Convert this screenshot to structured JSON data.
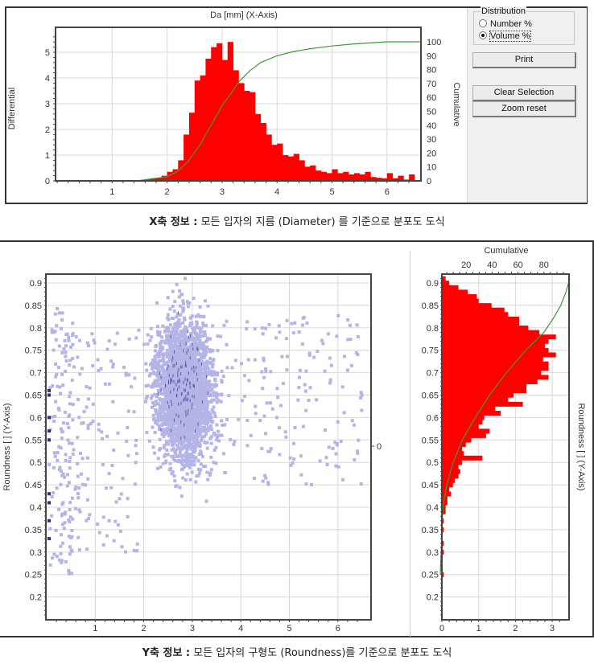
{
  "top_window": {
    "chart_title": "Da [mm] (X-Axis)",
    "left_axis_label": "Differential",
    "right_axis_label": "Cumulative",
    "distribution_group": {
      "title": "Distribution",
      "options": [
        {
          "label": "Number %",
          "selected": false
        },
        {
          "label": "Volume %",
          "selected": true
        }
      ]
    },
    "buttons": {
      "print": "Print",
      "clear_selection": "Clear Selection",
      "zoom_reset": "Zoom reset"
    }
  },
  "caption_top": {
    "bold": "X축 정보 :",
    "text": " 모든 입자의 지름 (Diameter) 를 기준으로 분포도 도식"
  },
  "bottom_window": {
    "scatter_y_label": "Roundness [ ] (Y-Axis)",
    "scatter_right_tick": "0",
    "hist_top_label": "Cumulative",
    "hist_right_label": "Roundness [ ] (Y-Axis)"
  },
  "caption_bottom": {
    "bold": "Y축 정보 :",
    "text": " 모든 입자의 구형도 (Roundness)를 기준으로 분포도 도식"
  },
  "colors": {
    "bar": "#ff0000",
    "cumulative_line": "#3c9a3c",
    "scatter_point": "#b4b4e6",
    "scatter_dense": "#5a5aaa",
    "grid": "#d8d8d8",
    "axis": "#444444"
  },
  "chart_data": [
    {
      "type": "bar",
      "title": "Da [mm] (X-Axis)",
      "xlabel": "Da [mm]",
      "ylabel": "Differential",
      "y2label": "Cumulative",
      "xlim": [
        0,
        6.7
      ],
      "ylim": [
        0,
        5.9
      ],
      "y2lim": [
        0,
        100
      ],
      "xticks": [
        1,
        2,
        3,
        4,
        5,
        6
      ],
      "yticks": [
        0,
        1,
        2,
        3,
        4,
        5
      ],
      "y2ticks": [
        0,
        10,
        20,
        30,
        40,
        50,
        60,
        70,
        80,
        90,
        100
      ],
      "grid": true,
      "bin_width": 0.1,
      "bins_start": [
        1.5,
        1.6,
        1.7,
        1.8,
        1.9,
        2.0,
        2.1,
        2.2,
        2.3,
        2.4,
        2.5,
        2.6,
        2.7,
        2.8,
        2.9,
        3.0,
        3.1,
        3.2,
        3.3,
        3.4,
        3.5,
        3.6,
        3.7,
        3.8,
        3.9,
        4.0,
        4.1,
        4.2,
        4.3,
        4.4,
        4.5,
        4.6,
        4.7,
        4.8,
        4.9,
        5.0,
        5.1,
        5.2,
        5.3,
        5.4,
        5.5,
        5.6,
        5.7,
        5.8,
        5.9,
        6.0,
        6.1,
        6.2,
        6.3,
        6.4
      ],
      "values": [
        0.02,
        0.06,
        0.1,
        0.12,
        0.2,
        0.35,
        0.45,
        0.8,
        1.8,
        2.65,
        3.9,
        4.1,
        4.75,
        5.2,
        5.35,
        4.7,
        5.4,
        4.3,
        3.8,
        3.5,
        3.45,
        2.6,
        2.25,
        1.8,
        1.4,
        1.45,
        1.0,
        0.95,
        1.05,
        0.8,
        0.55,
        0.6,
        0.4,
        0.35,
        0.3,
        0.45,
        0.3,
        0.35,
        0.25,
        0.3,
        0.25,
        0.35,
        0.15,
        0.12,
        0.1,
        0.3,
        0.1,
        0.2,
        0.05,
        0.25
      ],
      "cumulative": {
        "x": [
          0,
          1.5,
          2.0,
          2.2,
          2.4,
          2.6,
          2.8,
          3.0,
          3.2,
          3.3,
          3.5,
          3.7,
          4.0,
          4.3,
          4.6,
          5.0,
          5.4,
          6.0,
          6.6
        ],
        "y": [
          0,
          0.3,
          3,
          7,
          15,
          26,
          40,
          54,
          65,
          71,
          79,
          85,
          90,
          93,
          95,
          97,
          98.5,
          100,
          100
        ]
      }
    },
    {
      "type": "scatter",
      "xlabel": "Da [mm]",
      "ylabel": "Roundness [ ] (Y-Axis)",
      "xlim": [
        0,
        6.7
      ],
      "ylim": [
        0.15,
        0.92
      ],
      "xticks": [
        1,
        2,
        3,
        4,
        5,
        6
      ],
      "yticks": [
        0.2,
        0.25,
        0.3,
        0.35,
        0.4,
        0.45,
        0.5,
        0.55,
        0.6,
        0.65,
        0.7,
        0.75,
        0.8,
        0.85,
        0.9
      ],
      "grid": true,
      "description": "Dense cluster centered around Da≈2.8 mm, Roundness≈0.65 (spanning Da 1.8–4.2, Roundness 0.4–0.92); sparse tail to Da≈6.5; column of points near Da≈0.1–0.6"
    },
    {
      "type": "bar",
      "orientation": "horizontal",
      "xlabel": "Differential",
      "x2label": "Cumulative",
      "ylabel": "Roundness [ ] (Y-Axis)",
      "xlim": [
        0,
        3.4
      ],
      "ylim": [
        0.15,
        0.92
      ],
      "xticks": [
        0,
        1,
        2,
        3
      ],
      "x2ticks": [
        20,
        40,
        60,
        80
      ],
      "yticks": [
        0.2,
        0.25,
        0.3,
        0.35,
        0.4,
        0.45,
        0.5,
        0.55,
        0.6,
        0.65,
        0.7,
        0.75,
        0.8,
        0.85,
        0.9
      ],
      "grid": true,
      "bin_width": 0.01,
      "categories": [
        0.25,
        0.3,
        0.32,
        0.35,
        0.37,
        0.39,
        0.4,
        0.41,
        0.42,
        0.43,
        0.44,
        0.45,
        0.46,
        0.47,
        0.48,
        0.49,
        0.5,
        0.51,
        0.52,
        0.53,
        0.54,
        0.55,
        0.56,
        0.57,
        0.58,
        0.59,
        0.6,
        0.61,
        0.62,
        0.63,
        0.64,
        0.65,
        0.66,
        0.67,
        0.68,
        0.69,
        0.7,
        0.71,
        0.72,
        0.73,
        0.74,
        0.75,
        0.76,
        0.77,
        0.78,
        0.79,
        0.8,
        0.81,
        0.82,
        0.83,
        0.84,
        0.85,
        0.86,
        0.87,
        0.88,
        0.89,
        0.9,
        0.91
      ],
      "values": [
        0.05,
        0.05,
        0.05,
        0.05,
        0.05,
        0.1,
        0.1,
        0.15,
        0.15,
        0.25,
        0.2,
        0.3,
        0.35,
        0.45,
        0.5,
        0.45,
        0.55,
        1.1,
        0.6,
        0.55,
        0.65,
        0.8,
        1.2,
        1.3,
        1.0,
        1.1,
        1.15,
        1.6,
        1.45,
        2.2,
        1.8,
        1.95,
        2.3,
        2.3,
        2.6,
        2.9,
        2.7,
        2.9,
        2.9,
        2.75,
        3.1,
        2.9,
        2.8,
        2.9,
        3.1,
        2.65,
        2.35,
        2.1,
        2.1,
        1.8,
        1.7,
        1.35,
        1.0,
        0.95,
        0.7,
        0.45,
        0.2,
        0.1
      ],
      "cumulative": {
        "y": [
          0.25,
          0.4,
          0.45,
          0.5,
          0.55,
          0.6,
          0.65,
          0.7,
          0.75,
          0.79,
          0.82,
          0.85,
          0.88,
          0.91
        ],
        "x": [
          0,
          2,
          5,
          10,
          17,
          27,
          38,
          51,
          66,
          80,
          87,
          93,
          97,
          100
        ]
      }
    }
  ]
}
